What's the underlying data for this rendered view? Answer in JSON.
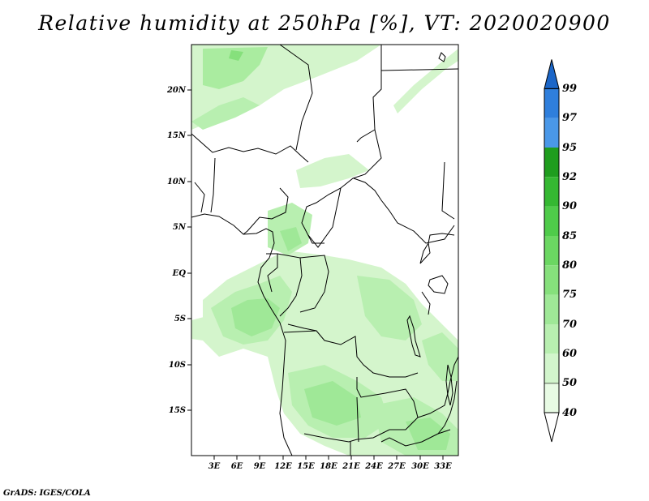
{
  "title": "Relative humidity at 250hPa [%], VT: 2020020900",
  "credit": "GrADS: IGES/COLA",
  "map": {
    "lat_labels": [
      "20N",
      "15N",
      "10N",
      "5N",
      "EQ",
      "5S",
      "10S",
      "15S"
    ],
    "lon_labels": [
      "3E",
      "6E",
      "9E",
      "12E",
      "15E",
      "18E",
      "21E",
      "24E",
      "27E",
      "30E",
      "33E"
    ],
    "lon_range": [
      0,
      35
    ],
    "lat_range": [
      -20,
      25
    ]
  },
  "colorbar": {
    "levels": [
      "40",
      "50",
      "60",
      "70",
      "75",
      "80",
      "85",
      "90",
      "92",
      "95",
      "97",
      "99"
    ],
    "colors": [
      "#e8fbe4",
      "#d2f5cc",
      "#b8efb0",
      "#9fe897",
      "#86e07c",
      "#6bd762",
      "#4fcb4a",
      "#35b832",
      "#1f9d1e",
      "#4a98e8",
      "#2f7fdc",
      "#1b66c8"
    ]
  }
}
